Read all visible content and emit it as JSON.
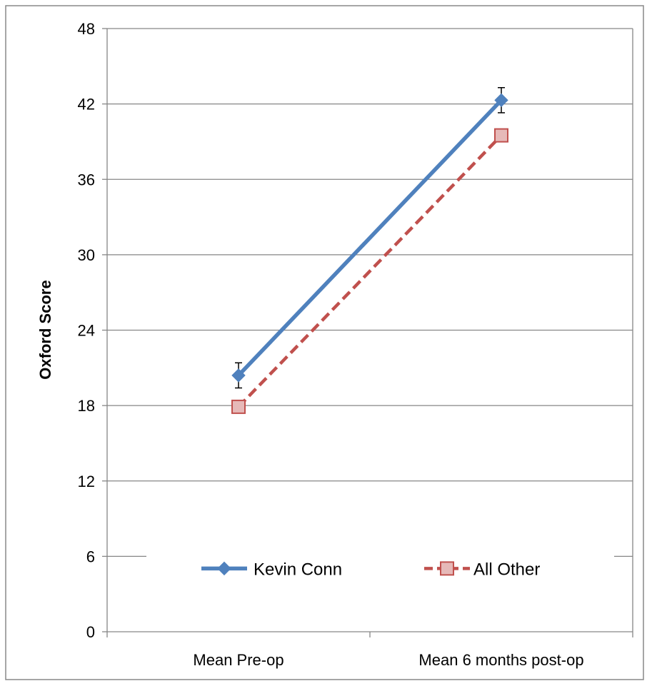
{
  "chart_data": {
    "type": "line",
    "title": "",
    "xlabel": "",
    "ylabel": "Oxford Score",
    "ylim": [
      0,
      48
    ],
    "yticks": [
      0,
      6,
      12,
      18,
      24,
      30,
      36,
      42,
      48
    ],
    "categories": [
      "Mean Pre-op",
      "Mean 6 months post-op"
    ],
    "grid": true,
    "legend_position": "bottom-inside",
    "series": [
      {
        "name": "Kevin Conn",
        "values": [
          20.4,
          42.3
        ],
        "error": [
          1.0,
          1.0
        ],
        "color": "#4F81BD",
        "line_style": "solid",
        "marker": "diamond"
      },
      {
        "name": "All Other",
        "values": [
          17.9,
          39.5
        ],
        "color": "#C0504D",
        "line_style": "dashed",
        "marker": "square"
      }
    ]
  }
}
